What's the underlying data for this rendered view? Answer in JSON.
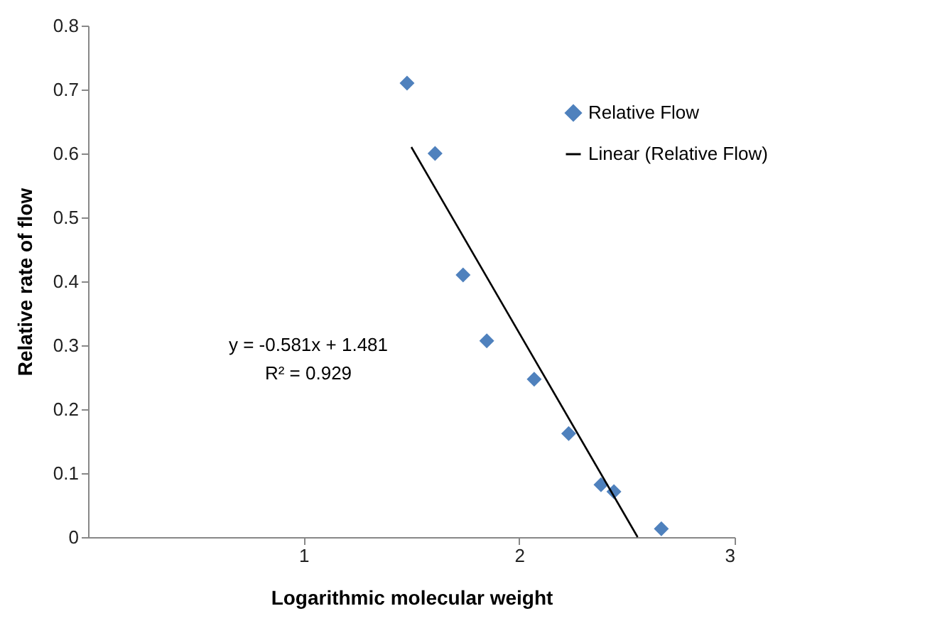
{
  "chart_data": {
    "type": "scatter",
    "xlabel": "Logarithmic molecular weight",
    "ylabel": "Relative rate of flow",
    "xlim": [
      0,
      3
    ],
    "xticks": [
      1,
      2,
      3
    ],
    "ylim": [
      0,
      0.8
    ],
    "yticks": [
      0,
      0.1,
      0.2,
      0.3,
      0.4,
      0.5,
      0.6,
      0.7,
      0.8
    ],
    "grid": false,
    "legend": "top right",
    "annotations": [
      "y = -0.581x + 1.481",
      "R² = 0.929"
    ],
    "series": [
      {
        "name": "Relative Flow",
        "marker": "diamond",
        "color": "#4f81bd",
        "x": [
          1.48,
          1.61,
          1.74,
          1.85,
          2.07,
          2.23,
          2.38,
          2.44,
          2.66
        ],
        "values": [
          0.71,
          0.6,
          0.41,
          0.307,
          0.247,
          0.162,
          0.082,
          0.071,
          0.013
        ]
      },
      {
        "name": "Linear (Relative Flow)",
        "type": "line",
        "line_style": "solid",
        "color": "#000000",
        "x": [
          1.5,
          2.55
        ],
        "values": [
          0.61,
          0
        ]
      }
    ]
  }
}
